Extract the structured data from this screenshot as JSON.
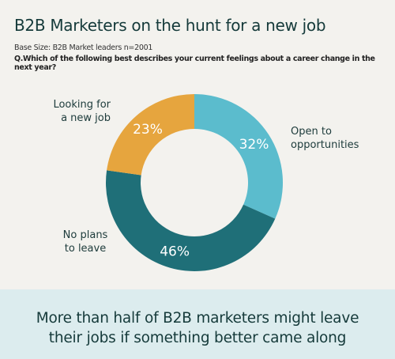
{
  "header": {
    "title": "B2B Marketers on the hunt for a new job",
    "base_size": "Base Size: B2B Market leaders n=2001",
    "question": "Q.Which of the following best describes your current feelings about a career change in the next year?"
  },
  "chart_data": {
    "type": "pie",
    "style": "donut",
    "categories": [
      "Open to opportunities",
      "No plans to leave",
      "Looking for a new job"
    ],
    "values": [
      32,
      46,
      23
    ],
    "value_labels": [
      "32%",
      "46%",
      "23%"
    ],
    "colors": [
      "#5bbccd",
      "#1f6f78",
      "#e6a53e"
    ],
    "labels": {
      "open": [
        "Open to",
        "opportunities"
      ],
      "none": [
        "No plans",
        "to leave"
      ],
      "look": [
        "Looking for",
        "a new job"
      ]
    }
  },
  "footer": {
    "line1": "More than half of B2B marketers might leave",
    "line2": "their jobs if something better came along"
  }
}
